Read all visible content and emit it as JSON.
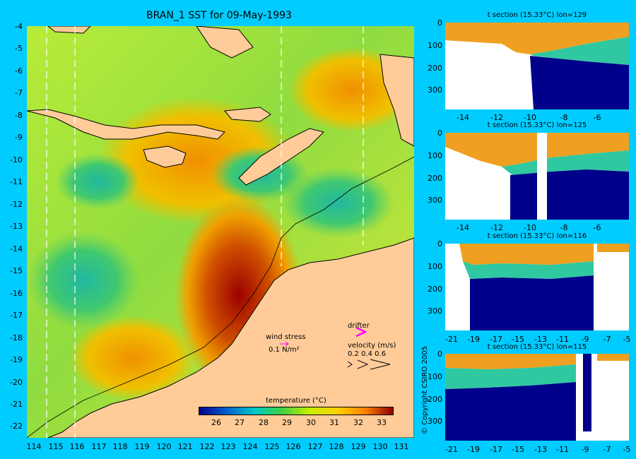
{
  "title": "BRAN_1 SST for 09-May-1993",
  "main_map": {
    "y_ticks": [
      "-4",
      "-5",
      "-6",
      "-7",
      "-8",
      "-9",
      "-10",
      "-11",
      "-12",
      "-13",
      "-14",
      "-15",
      "-16",
      "-17",
      "-18",
      "-19",
      "-20",
      "-21",
      "-22"
    ],
    "x_ticks": [
      "114",
      "115",
      "116",
      "117",
      "118",
      "119",
      "120",
      "121",
      "122",
      "123",
      "124",
      "125",
      "126",
      "127",
      "128",
      "129",
      "130",
      "131"
    ],
    "colorbar": {
      "label": "temperature (°C)",
      "ticks": [
        "26",
        "27",
        "28",
        "29",
        "30",
        "31",
        "32",
        "33"
      ],
      "colors": [
        "#00008b",
        "#0060d0",
        "#00c8c8",
        "#40d040",
        "#c8f000",
        "#ffd000",
        "#ff8000",
        "#8b0000"
      ]
    },
    "legend": {
      "wind_stress_label": "wind stress",
      "wind_stress_scale": "0.1 N/m²",
      "drifter_label": "drifter",
      "velocity_label": "velocity (m/s)",
      "velocity_values": "0.2 0.4 0.6"
    },
    "colors": {
      "land": "#ffcc99",
      "background": "#00ccff",
      "warm": "#8b0000",
      "sea": "#a8e040"
    }
  },
  "sections": [
    {
      "title": "t section (15.33°C) lon=129",
      "y_ticks": [
        "0",
        "100",
        "200",
        "300"
      ],
      "x_ticks": [
        "-14",
        "-12",
        "-10",
        "-8",
        "-6"
      ]
    },
    {
      "title": "t section (15.33°C) lon=125",
      "y_ticks": [
        "0",
        "100",
        "200",
        "300"
      ],
      "x_ticks": [
        "-14",
        "-12",
        "-10",
        "-8",
        "-6"
      ]
    },
    {
      "title": "t section (15.33°C) lon=116",
      "y_ticks": [
        "0",
        "100",
        "200",
        "300"
      ],
      "x_ticks": [
        "-21",
        "-19",
        "-17",
        "-15",
        "-13",
        "-11",
        "-9",
        "-7",
        "-5"
      ]
    },
    {
      "title": "t section (15.33°C) lon=115",
      "y_ticks": [
        "0",
        "100",
        "200",
        "300"
      ],
      "x_ticks": [
        "-21",
        "-19",
        "-17",
        "-15",
        "-13",
        "-11",
        "-9",
        "-7",
        "-5"
      ]
    }
  ],
  "copyright": "© Copyright CSIRO 2005"
}
